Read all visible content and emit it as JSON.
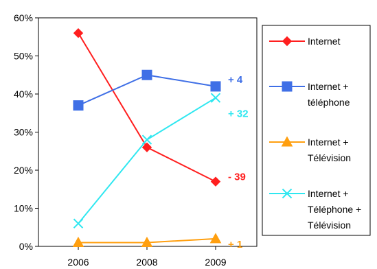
{
  "chart_data": {
    "type": "line",
    "title": "",
    "xlabel": "",
    "ylabel": "",
    "categories": [
      "2006",
      "2008",
      "2009"
    ],
    "ylim": [
      0,
      60
    ],
    "y_ticks": [
      "0%",
      "10%",
      "20%",
      "30%",
      "40%",
      "50%",
      "60%"
    ],
    "grid": false,
    "legend_position": "right",
    "series": [
      {
        "name": "Internet",
        "values": [
          56,
          26,
          17
        ],
        "color": "#ff1f1f",
        "marker": "diamond",
        "annotation": "- 39"
      },
      {
        "name": "Internet + téléphone",
        "values": [
          37,
          45,
          42
        ],
        "color": "#3f6fe6",
        "marker": "square",
        "annotation": "+ 4"
      },
      {
        "name": "Internet + Télévision",
        "values": [
          1,
          1,
          2
        ],
        "color": "#ff9f0f",
        "marker": "triangle",
        "annotation": "+ 1"
      },
      {
        "name": "Internet + Téléphone + Télévision",
        "values": [
          6,
          28,
          39
        ],
        "color": "#2fe7f0",
        "marker": "x",
        "annotation": "+ 32"
      }
    ],
    "legend_lines": [
      [
        "Internet"
      ],
      [
        "Internet +",
        "téléphone"
      ],
      [
        "Internet +",
        "Télévision"
      ],
      [
        "Internet +",
        "Téléphone +",
        "Télévision"
      ]
    ]
  }
}
